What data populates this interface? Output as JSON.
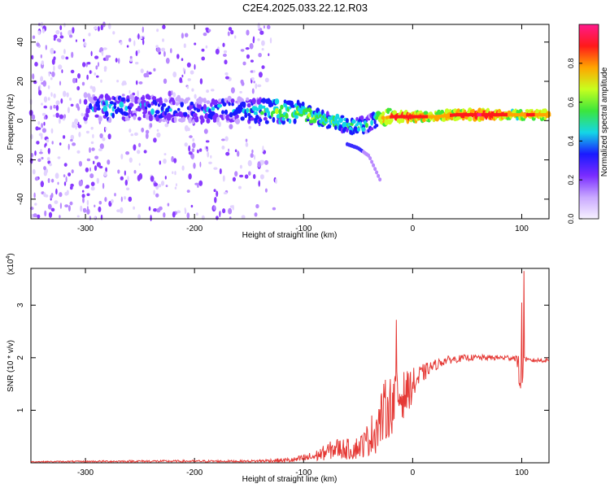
{
  "title": "C2E4.2025.033.22.12.R03",
  "colors": {
    "snr_line": "#e53935",
    "spectro_purple": "#7a2cff",
    "spectro_cyan": "#14d6e6",
    "spectro_green": "#3ce63c",
    "spectro_red": "#ff1a1a"
  },
  "chart_data": [
    {
      "type": "heatmap",
      "name": "spectrogram",
      "xlabel": "Height of straight line (km)",
      "ylabel": "Frequency (Hz)",
      "xlim": [
        -350,
        125
      ],
      "ylim": [
        -50,
        49
      ],
      "xticks": [
        -300,
        -200,
        -100,
        0,
        100
      ],
      "yticks": [
        -40,
        -20,
        0,
        20,
        40
      ],
      "ridge": {
        "x": [
          -295,
          -275,
          -255,
          -235,
          -215,
          -195,
          -175,
          -155,
          -135,
          -115,
          -95,
          -80,
          -65,
          -50,
          -42,
          -35,
          -30,
          -20,
          -10,
          0,
          20,
          40,
          60,
          80,
          95,
          105,
          125
        ],
        "freq": [
          7,
          6,
          7,
          6,
          6,
          5,
          6,
          5,
          5,
          5,
          3,
          0,
          -1,
          -3,
          -2,
          0,
          1,
          2,
          2,
          2,
          2,
          3,
          3,
          3,
          3,
          3,
          3
        ],
        "amplitude": [
          0.35,
          0.45,
          0.35,
          0.4,
          0.35,
          0.35,
          0.4,
          0.4,
          0.5,
          0.55,
          0.6,
          0.55,
          0.55,
          0.5,
          0.45,
          0.5,
          0.7,
          0.85,
          0.9,
          0.9,
          0.8,
          0.85,
          0.95,
          0.9,
          0.75,
          0.85,
          0.8
        ]
      },
      "secondary_branch": {
        "x": [
          -60,
          -50,
          -40,
          -30
        ],
        "freq": [
          -12,
          -14,
          -18,
          -30
        ]
      }
    },
    {
      "type": "colorbar",
      "name": "colorbar",
      "label": "Normalized spectral amplitude",
      "range": [
        0,
        1
      ],
      "ticks": [
        "0.0",
        "0.2",
        "0.4",
        "0.6",
        "0.8"
      ],
      "tick_values": [
        0,
        0.2,
        0.4,
        0.6,
        0.8
      ],
      "stops": [
        "#f7f2ff",
        "#c9a8ff",
        "#7a2cff",
        "#1a1aff",
        "#14d6e6",
        "#3ce63c",
        "#c8ff1e",
        "#ffa500",
        "#ff1a1a",
        "#ff1a8c"
      ]
    },
    {
      "type": "line",
      "name": "snr",
      "xlabel": "Height of straight line (km)",
      "ylabel": "SNR (10 * v/v)",
      "y_multiplier": "(x10",
      "y_multiplier_exp": "4",
      "y_multiplier_close": ")",
      "xlim": [
        -350,
        125
      ],
      "ylim": [
        0,
        3.7
      ],
      "xticks": [
        -300,
        -200,
        -100,
        0,
        100
      ],
      "yticks": [
        1,
        2,
        3
      ],
      "envelope": {
        "x": [
          -350,
          -250,
          -150,
          -110,
          -90,
          -70,
          -55,
          -45,
          -35,
          -25,
          -15,
          -5,
          5,
          15,
          30,
          50,
          80,
          95,
          100,
          102,
          105,
          110,
          125
        ],
        "mean": [
          0.02,
          0.03,
          0.03,
          0.05,
          0.12,
          0.28,
          0.25,
          0.35,
          0.6,
          1.0,
          1.2,
          1.35,
          1.6,
          1.8,
          1.95,
          2.0,
          2.0,
          2.0,
          1.5,
          2.0,
          1.95,
          1.95,
          1.95
        ],
        "spread": [
          0.01,
          0.02,
          0.02,
          0.05,
          0.1,
          0.2,
          0.2,
          0.25,
          0.45,
          0.6,
          0.55,
          0.4,
          0.25,
          0.12,
          0.08,
          0.06,
          0.05,
          0.06,
          0.5,
          0.06,
          0.04,
          0.04,
          0.04
        ]
      },
      "spikes": [
        {
          "x": -15,
          "y": 2.72
        },
        {
          "x": 100,
          "y": 3.05
        },
        {
          "x": 102,
          "y": 3.65
        }
      ]
    }
  ]
}
